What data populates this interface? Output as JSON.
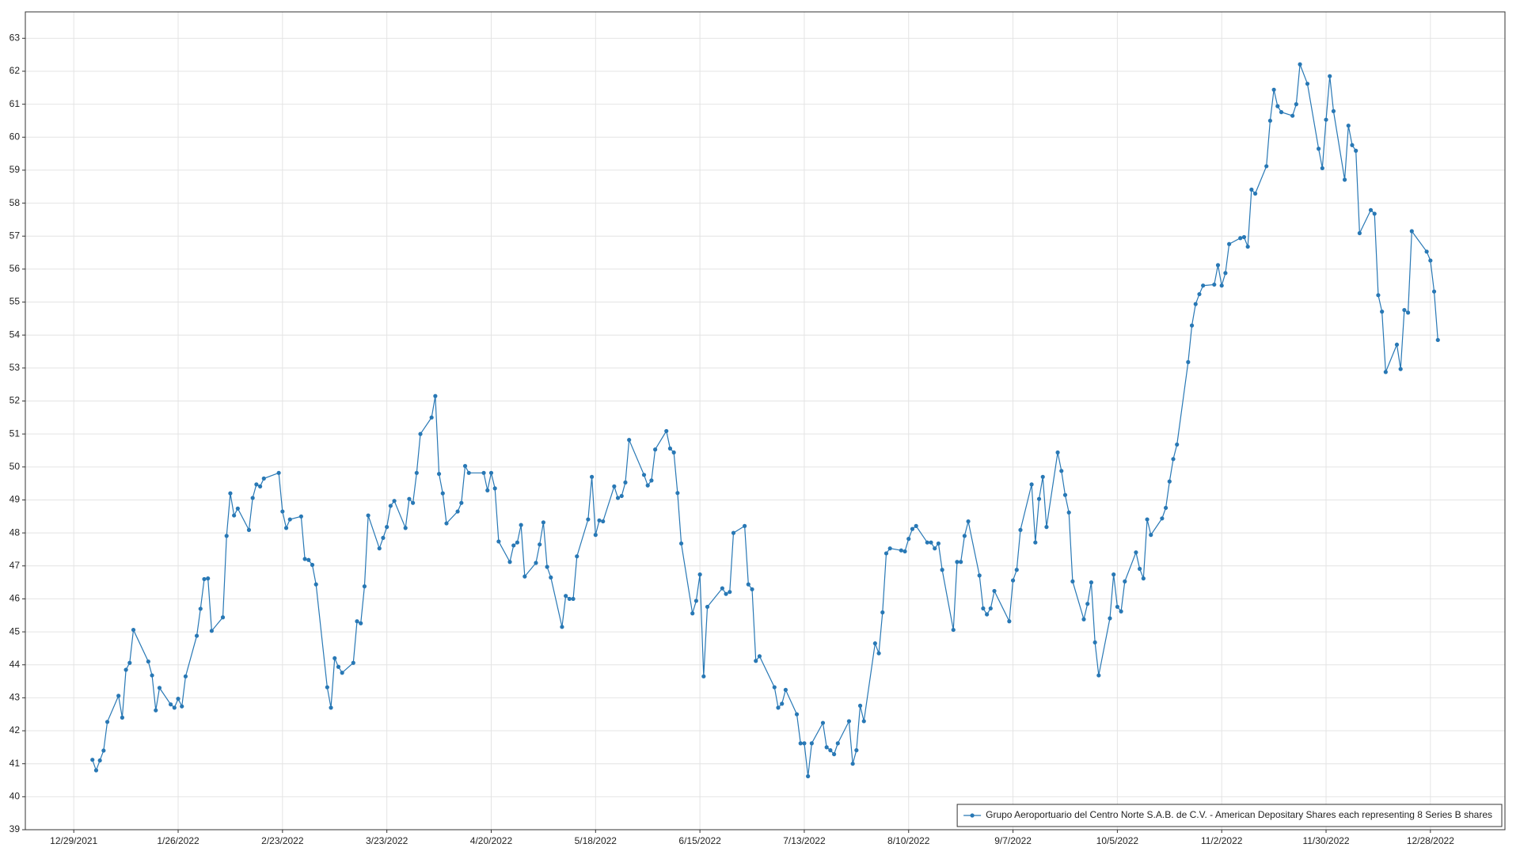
{
  "chart_data": {
    "type": "line",
    "series": [
      {
        "name": "Grupo Aeroportuario del Centro Norte S.A.B. de C.V. - American Depositary Shares each representing 8 Series B shares",
        "color": "#2878b5",
        "values": [
          41.12,
          40.8,
          41.1,
          41.4,
          42.27,
          43.06,
          42.4,
          43.85,
          44.06,
          45.06,
          44.1,
          43.68,
          42.62,
          43.3,
          42.8,
          42.7,
          42.97,
          42.74,
          43.65,
          44.88,
          45.7,
          46.6,
          46.62,
          45.03,
          45.44,
          47.91,
          49.2,
          48.53,
          48.74,
          48.09,
          49.06,
          49.47,
          49.41,
          49.65,
          49.82,
          48.65,
          48.15,
          48.41,
          48.5,
          47.21,
          47.18,
          47.03,
          46.44,
          43.32,
          42.7,
          44.2,
          43.94,
          43.76,
          44.06,
          45.32,
          45.26,
          46.38,
          48.53,
          47.53,
          47.85,
          48.18,
          48.82,
          48.97,
          48.15,
          49.03,
          48.91,
          49.82,
          51.0,
          51.5,
          52.15,
          49.79,
          49.2,
          48.29,
          48.65,
          48.91,
          50.03,
          49.82,
          49.82,
          49.29,
          49.82,
          49.35,
          47.74,
          47.12,
          47.62,
          47.71,
          48.24,
          46.68,
          47.09,
          47.65,
          48.32,
          46.97,
          46.65,
          45.15,
          46.09,
          46.0,
          46.0,
          47.29,
          48.41,
          49.7,
          47.94,
          48.38,
          48.35,
          49.41,
          49.06,
          49.12,
          49.53,
          50.82,
          49.76,
          49.44,
          49.59,
          50.53,
          51.09,
          50.56,
          50.44,
          49.21,
          47.68,
          45.56,
          45.94,
          46.74,
          43.65,
          45.76,
          46.32,
          46.15,
          46.21,
          48.0,
          48.21,
          46.44,
          46.29,
          44.12,
          44.26,
          43.32,
          42.7,
          42.82,
          43.24,
          42.5,
          41.62,
          41.62,
          40.62,
          41.62,
          42.24,
          41.5,
          41.41,
          41.29,
          41.62,
          42.29,
          41.0,
          41.41,
          42.76,
          42.29,
          44.65,
          44.35,
          45.59,
          47.38,
          47.53,
          47.47,
          47.44,
          47.82,
          48.12,
          48.21,
          47.71,
          47.71,
          47.53,
          47.68,
          46.88,
          45.06,
          47.12,
          47.12,
          47.91,
          48.35,
          46.71,
          45.71,
          45.53,
          45.71,
          46.24,
          45.32,
          46.56,
          46.88,
          48.09,
          49.47,
          47.71,
          49.03,
          49.7,
          48.18,
          50.44,
          49.88,
          49.15,
          48.62,
          46.53,
          45.38,
          45.85,
          46.5,
          44.68,
          43.68,
          45.41,
          46.74,
          45.76,
          45.62,
          46.53,
          47.41,
          46.91,
          46.62,
          48.41,
          47.94,
          48.44,
          48.76,
          49.56,
          50.24,
          50.68,
          53.18,
          54.29,
          54.94,
          55.24,
          55.5,
          55.53,
          56.12,
          55.5,
          55.88,
          56.76,
          56.94,
          56.97,
          56.68,
          58.41,
          58.29,
          59.12,
          60.5,
          61.44,
          60.94,
          60.76,
          60.65,
          61.0,
          62.21,
          61.62,
          59.65,
          59.06,
          60.53,
          61.85,
          60.79,
          58.71,
          60.35,
          59.76,
          59.59,
          57.09,
          57.79,
          57.68,
          55.21,
          54.71,
          52.88,
          53.71,
          52.97,
          54.76,
          54.68,
          57.15,
          56.53,
          56.26,
          55.32,
          53.85
        ]
      }
    ],
    "x": [
      "1/3/2022",
      "1/4/2022",
      "1/5/2022",
      "1/6/2022",
      "1/7/2022",
      "1/10/2022",
      "1/11/2022",
      "1/12/2022",
      "1/13/2022",
      "1/14/2022",
      "1/18/2022",
      "1/19/2022",
      "1/20/2022",
      "1/21/2022",
      "1/24/2022",
      "1/25/2022",
      "1/26/2022",
      "1/27/2022",
      "1/28/2022",
      "1/31/2022",
      "2/1/2022",
      "2/2/2022",
      "2/3/2022",
      "2/4/2022",
      "2/7/2022",
      "2/8/2022",
      "2/9/2022",
      "2/10/2022",
      "2/11/2022",
      "2/14/2022",
      "2/15/2022",
      "2/16/2022",
      "2/17/2022",
      "2/18/2022",
      "2/22/2022",
      "2/23/2022",
      "2/24/2022",
      "2/25/2022",
      "2/28/2022",
      "3/1/2022",
      "3/2/2022",
      "3/3/2022",
      "3/4/2022",
      "3/7/2022",
      "3/8/2022",
      "3/9/2022",
      "3/10/2022",
      "3/11/2022",
      "3/14/2022",
      "3/15/2022",
      "3/16/2022",
      "3/17/2022",
      "3/18/2022",
      "3/21/2022",
      "3/22/2022",
      "3/23/2022",
      "3/24/2022",
      "3/25/2022",
      "3/28/2022",
      "3/29/2022",
      "3/30/2022",
      "3/31/2022",
      "4/1/2022",
      "4/4/2022",
      "4/5/2022",
      "4/6/2022",
      "4/7/2022",
      "4/8/2022",
      "4/11/2022",
      "4/12/2022",
      "4/13/2022",
      "4/14/2022",
      "4/18/2022",
      "4/19/2022",
      "4/20/2022",
      "4/21/2022",
      "4/22/2022",
      "4/25/2022",
      "4/26/2022",
      "4/27/2022",
      "4/28/2022",
      "4/29/2022",
      "5/2/2022",
      "5/3/2022",
      "5/4/2022",
      "5/5/2022",
      "5/6/2022",
      "5/9/2022",
      "5/10/2022",
      "5/11/2022",
      "5/12/2022",
      "5/13/2022",
      "5/16/2022",
      "5/17/2022",
      "5/18/2022",
      "5/19/2022",
      "5/20/2022",
      "5/23/2022",
      "5/24/2022",
      "5/25/2022",
      "5/26/2022",
      "5/27/2022",
      "5/31/2022",
      "6/1/2022",
      "6/2/2022",
      "6/3/2022",
      "6/6/2022",
      "6/7/2022",
      "6/8/2022",
      "6/9/2022",
      "6/10/2022",
      "6/13/2022",
      "6/14/2022",
      "6/15/2022",
      "6/16/2022",
      "6/17/2022",
      "6/21/2022",
      "6/22/2022",
      "6/23/2022",
      "6/24/2022",
      "6/27/2022",
      "6/28/2022",
      "6/29/2022",
      "6/30/2022",
      "7/1/2022",
      "7/5/2022",
      "7/6/2022",
      "7/7/2022",
      "7/8/2022",
      "7/11/2022",
      "7/12/2022",
      "7/13/2022",
      "7/14/2022",
      "7/15/2022",
      "7/18/2022",
      "7/19/2022",
      "7/20/2022",
      "7/21/2022",
      "7/22/2022",
      "7/25/2022",
      "7/26/2022",
      "7/27/2022",
      "7/28/2022",
      "7/29/2022",
      "8/1/2022",
      "8/2/2022",
      "8/3/2022",
      "8/4/2022",
      "8/5/2022",
      "8/8/2022",
      "8/9/2022",
      "8/10/2022",
      "8/11/2022",
      "8/12/2022",
      "8/15/2022",
      "8/16/2022",
      "8/17/2022",
      "8/18/2022",
      "8/19/2022",
      "8/22/2022",
      "8/23/2022",
      "8/24/2022",
      "8/25/2022",
      "8/26/2022",
      "8/29/2022",
      "8/30/2022",
      "8/31/2022",
      "9/1/2022",
      "9/2/2022",
      "9/6/2022",
      "9/7/2022",
      "9/8/2022",
      "9/9/2022",
      "9/12/2022",
      "9/13/2022",
      "9/14/2022",
      "9/15/2022",
      "9/16/2022",
      "9/19/2022",
      "9/20/2022",
      "9/21/2022",
      "9/22/2022",
      "9/23/2022",
      "9/26/2022",
      "9/27/2022",
      "9/28/2022",
      "9/29/2022",
      "9/30/2022",
      "10/3/2022",
      "10/4/2022",
      "10/5/2022",
      "10/6/2022",
      "10/7/2022",
      "10/10/2022",
      "10/11/2022",
      "10/12/2022",
      "10/13/2022",
      "10/14/2022",
      "10/17/2022",
      "10/18/2022",
      "10/19/2022",
      "10/20/2022",
      "10/21/2022",
      "10/24/2022",
      "10/25/2022",
      "10/26/2022",
      "10/27/2022",
      "10/28/2022",
      "10/31/2022",
      "11/1/2022",
      "11/2/2022",
      "11/3/2022",
      "11/4/2022",
      "11/7/2022",
      "11/8/2022",
      "11/9/2022",
      "11/10/2022",
      "11/11/2022",
      "11/14/2022",
      "11/15/2022",
      "11/16/2022",
      "11/17/2022",
      "11/18/2022",
      "11/21/2022",
      "11/22/2022",
      "11/23/2022",
      "11/25/2022",
      "11/28/2022",
      "11/29/2022",
      "11/30/2022",
      "12/1/2022",
      "12/2/2022",
      "12/5/2022",
      "12/6/2022",
      "12/7/2022",
      "12/8/2022",
      "12/9/2022",
      "12/12/2022",
      "12/13/2022",
      "12/14/2022",
      "12/15/2022",
      "12/16/2022",
      "12/19/2022",
      "12/20/2022",
      "12/21/2022",
      "12/22/2022",
      "12/23/2022",
      "12/27/2022",
      "12/28/2022",
      "12/29/2022",
      "12/30/2022"
    ],
    "xlim": [
      "12/16/2021",
      "1/17/2023"
    ],
    "xticks": [
      "12/29/2021",
      "1/26/2022",
      "2/23/2022",
      "3/23/2022",
      "4/20/2022",
      "5/18/2022",
      "6/15/2022",
      "7/13/2022",
      "8/10/2022",
      "9/7/2022",
      "10/5/2022",
      "11/2/2022",
      "11/30/2022",
      "12/28/2022"
    ],
    "ylim": [
      39,
      63.8
    ],
    "yticks": [
      39,
      40,
      41,
      42,
      43,
      44,
      45,
      46,
      47,
      48,
      49,
      50,
      51,
      52,
      53,
      54,
      55,
      56,
      57,
      58,
      59,
      60,
      61,
      62,
      63
    ],
    "grid": true,
    "legend": "lower right"
  }
}
